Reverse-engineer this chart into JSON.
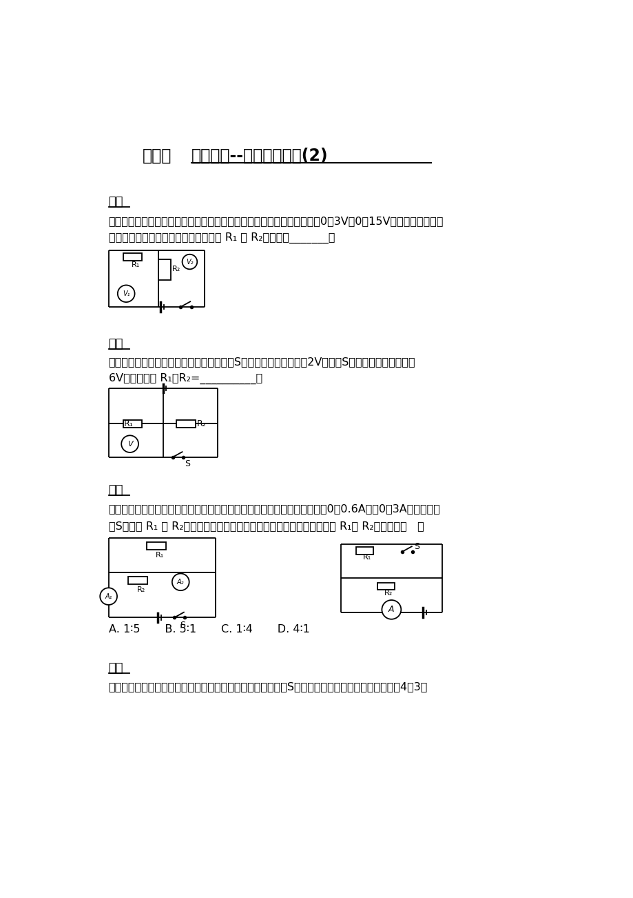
{
  "bg_color": "#ffffff",
  "page_width": 9.2,
  "page_height": 13.02,
  "title_part1": "专题：",
  "title_part2": "欧姆定律--比例计算问题(2)",
  "sections": [
    {
      "heading": "题一",
      "line1": "题面：如图所示，电路中的两只电压表的规格完全相同，均有两个量程（0～3V，0～15V）。闭合开关，两",
      "line2": "只电压表的指针偏转角度相同，则电阻 R₁ 与 R₂的比值为_______。"
    },
    {
      "heading": "题二",
      "line1": "题面：如图所示，电源电压保持不变，开关S断开时，电压表示数为2V；开关S闭合时，电压表示数为",
      "line2": "6V，那么电阻 R₁：R₂=__________。"
    },
    {
      "heading": "题三",
      "line1": "题面：在如图所示的电路中，两只电流表的规格相同，电流表有两个量程（0～0.6A以及0～3A）。闭合开",
      "line2": "关S，电阻 R₁ 与 R₂均有电流流过，两只电流表的指针偏转角度相同，则 R₁与 R₂的比值为（   ）",
      "options": "A. 1∶5       B. 5∶1       C. 1∶4       D. 4∶1"
    },
    {
      "heading": "题四",
      "line1": "题面：在如图所示的电路中，电源两端的电压保持不变。开关S由闭合到断开，电流表的示数之比为4：3，"
    }
  ]
}
